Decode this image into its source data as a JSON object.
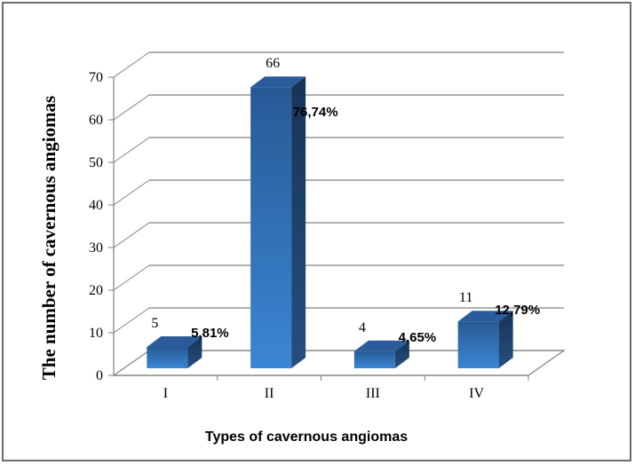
{
  "chart_data": {
    "type": "bar",
    "categories": [
      "I",
      "II",
      "III",
      "IV"
    ],
    "values": [
      5,
      66,
      4,
      11
    ],
    "percent_labels": [
      "5,81%",
      "76,74%",
      "4,65%",
      "12,79%"
    ],
    "value_labels": [
      "5",
      "66",
      "4",
      "11"
    ],
    "xlabel": "Types of cavernous angiomas",
    "ylabel": "The number of cavernous angiomas",
    "ylim": [
      0,
      70
    ],
    "yticks": [
      "0",
      "10",
      "20",
      "30",
      "40",
      "50",
      "60",
      "70"
    ],
    "grid": true,
    "legend": "none",
    "style": "3d-columns",
    "colors": {
      "bar_front": "#3a7ac8",
      "bar_side": "#1d3f6e",
      "bar_top": "#2a5c9c",
      "gridline": "#808080"
    }
  }
}
